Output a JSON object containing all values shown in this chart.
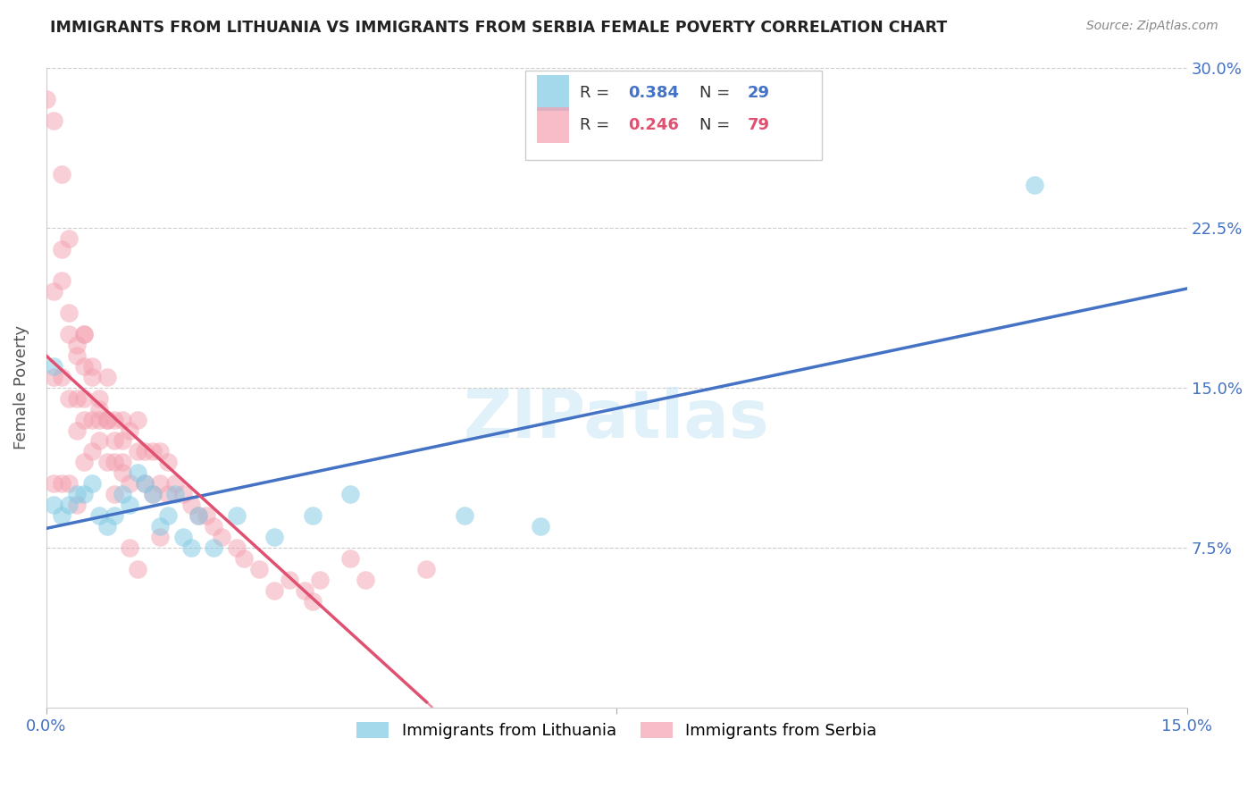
{
  "title": "IMMIGRANTS FROM LITHUANIA VS IMMIGRANTS FROM SERBIA FEMALE POVERTY CORRELATION CHART",
  "source": "Source: ZipAtlas.com",
  "ylabel": "Female Poverty",
  "xlim": [
    0.0,
    0.15
  ],
  "ylim": [
    0.0,
    0.3
  ],
  "ytick_labels": [
    "7.5%",
    "15.0%",
    "22.5%",
    "30.0%"
  ],
  "ytick_positions": [
    0.075,
    0.15,
    0.225,
    0.3
  ],
  "color_blue": "#7ec8e3",
  "color_pink": "#f4a0b0",
  "color_blue_line": "#4472c4",
  "color_pink_line": "#e05070",
  "color_blue_text": "#4472c4",
  "color_pink_text": "#e05070",
  "lithuania_x": [
    0.001,
    0.001,
    0.002,
    0.003,
    0.004,
    0.005,
    0.006,
    0.007,
    0.008,
    0.009,
    0.01,
    0.011,
    0.012,
    0.013,
    0.014,
    0.015,
    0.016,
    0.017,
    0.018,
    0.019,
    0.02,
    0.022,
    0.025,
    0.03,
    0.035,
    0.04,
    0.055,
    0.065,
    0.13
  ],
  "lithuania_y": [
    0.16,
    0.095,
    0.09,
    0.095,
    0.1,
    0.1,
    0.105,
    0.09,
    0.085,
    0.09,
    0.1,
    0.095,
    0.11,
    0.105,
    0.1,
    0.085,
    0.09,
    0.1,
    0.08,
    0.075,
    0.09,
    0.075,
    0.09,
    0.08,
    0.09,
    0.1,
    0.09,
    0.085,
    0.245
  ],
  "serbia_x": [
    0.0,
    0.001,
    0.001,
    0.001,
    0.001,
    0.002,
    0.002,
    0.002,
    0.002,
    0.003,
    0.003,
    0.003,
    0.003,
    0.004,
    0.004,
    0.004,
    0.004,
    0.005,
    0.005,
    0.005,
    0.005,
    0.005,
    0.006,
    0.006,
    0.006,
    0.007,
    0.007,
    0.007,
    0.008,
    0.008,
    0.008,
    0.009,
    0.009,
    0.009,
    0.01,
    0.01,
    0.01,
    0.011,
    0.011,
    0.012,
    0.012,
    0.013,
    0.013,
    0.014,
    0.014,
    0.015,
    0.015,
    0.016,
    0.016,
    0.017,
    0.018,
    0.019,
    0.02,
    0.021,
    0.022,
    0.023,
    0.025,
    0.026,
    0.028,
    0.03,
    0.032,
    0.034,
    0.035,
    0.036,
    0.04,
    0.042,
    0.05,
    0.002,
    0.003,
    0.004,
    0.005,
    0.006,
    0.007,
    0.008,
    0.009,
    0.01,
    0.011,
    0.012,
    0.015
  ],
  "serbia_y": [
    0.285,
    0.275,
    0.195,
    0.155,
    0.105,
    0.25,
    0.2,
    0.155,
    0.105,
    0.22,
    0.175,
    0.145,
    0.105,
    0.17,
    0.145,
    0.13,
    0.095,
    0.175,
    0.16,
    0.145,
    0.135,
    0.115,
    0.155,
    0.135,
    0.12,
    0.145,
    0.135,
    0.125,
    0.155,
    0.135,
    0.115,
    0.135,
    0.125,
    0.1,
    0.135,
    0.125,
    0.11,
    0.13,
    0.105,
    0.135,
    0.12,
    0.12,
    0.105,
    0.12,
    0.1,
    0.12,
    0.105,
    0.115,
    0.1,
    0.105,
    0.1,
    0.095,
    0.09,
    0.09,
    0.085,
    0.08,
    0.075,
    0.07,
    0.065,
    0.055,
    0.06,
    0.055,
    0.05,
    0.06,
    0.07,
    0.06,
    0.065,
    0.215,
    0.185,
    0.165,
    0.175,
    0.16,
    0.14,
    0.135,
    0.115,
    0.115,
    0.075,
    0.065,
    0.08
  ]
}
